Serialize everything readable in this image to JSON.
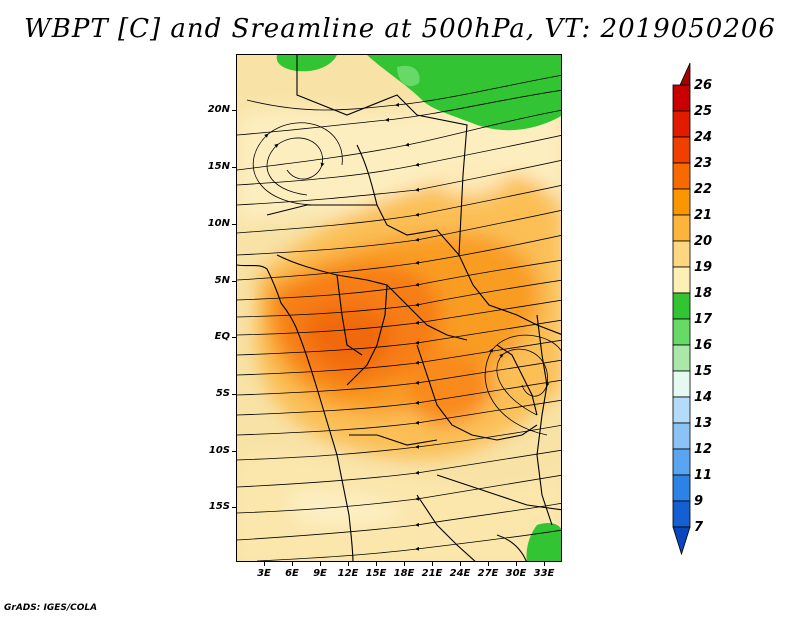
{
  "title": "WBPT [C] and Sreamline at 500hPa, VT: 2019050206",
  "credit": "GrADS: IGES/COLA",
  "map": {
    "lat_labels": [
      "20N",
      "15N",
      "10N",
      "5N",
      "EQ",
      "5S",
      "10S",
      "15S"
    ],
    "lon_labels": [
      "3E",
      "6E",
      "9E",
      "12E",
      "15E",
      "18E",
      "21E",
      "24E",
      "27E",
      "30E",
      "33E"
    ],
    "lon_range": [
      0,
      35
    ],
    "lat_range": [
      -20,
      24
    ]
  },
  "colorbar": {
    "levels": [
      "26",
      "25",
      "24",
      "23",
      "22",
      "21",
      "20",
      "19",
      "18",
      "17",
      "16",
      "15",
      "14",
      "13",
      "12",
      "11",
      "9",
      "7"
    ],
    "colors": [
      "#a50000",
      "#c80000",
      "#e11b00",
      "#f04000",
      "#f86a00",
      "#fa9600",
      "#fcb43c",
      "#fcd680",
      "#fdf0b4",
      "#33c433",
      "#66d966",
      "#aae8aa",
      "#e6f8f2",
      "#b4dcfa",
      "#8cc3f5",
      "#5aa5f0",
      "#2d82e6",
      "#1460d2",
      "#0a46be"
    ]
  }
}
